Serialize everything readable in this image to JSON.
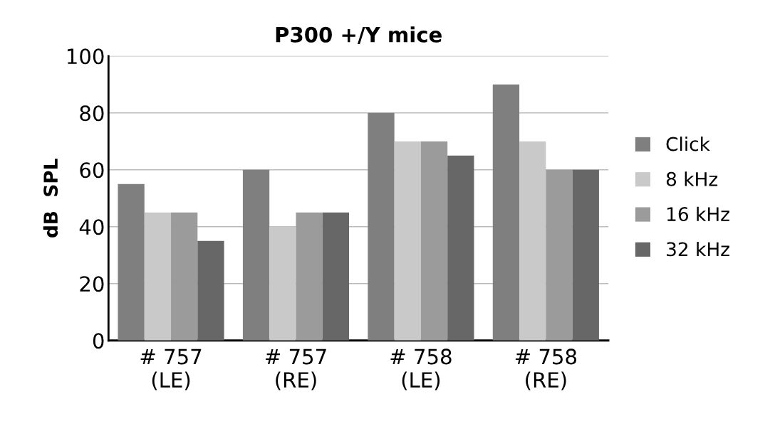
{
  "chart_data": {
    "type": "bar",
    "title": "P300 +/Y mice",
    "ylabel": "dB  SPL",
    "categories": [
      "# 757\n(LE)",
      "# 757\n(RE)",
      "# 758\n(LE)",
      "# 758\n(RE)"
    ],
    "series": [
      {
        "name": "Click",
        "color": "#7f7f7f",
        "values": [
          55,
          60,
          80,
          90
        ]
      },
      {
        "name": "8 kHz",
        "color": "#c9c9c9",
        "values": [
          45,
          40,
          70,
          70
        ]
      },
      {
        "name": "16 kHz",
        "color": "#9b9b9b",
        "values": [
          45,
          45,
          70,
          60
        ]
      },
      {
        "name": "32 kHz",
        "color": "#676767",
        "values": [
          35,
          45,
          65,
          60
        ]
      }
    ],
    "ylim": [
      0,
      100
    ],
    "yticks": [
      0,
      20,
      40,
      60,
      80,
      100
    ],
    "grid": "y",
    "legend": "right"
  }
}
